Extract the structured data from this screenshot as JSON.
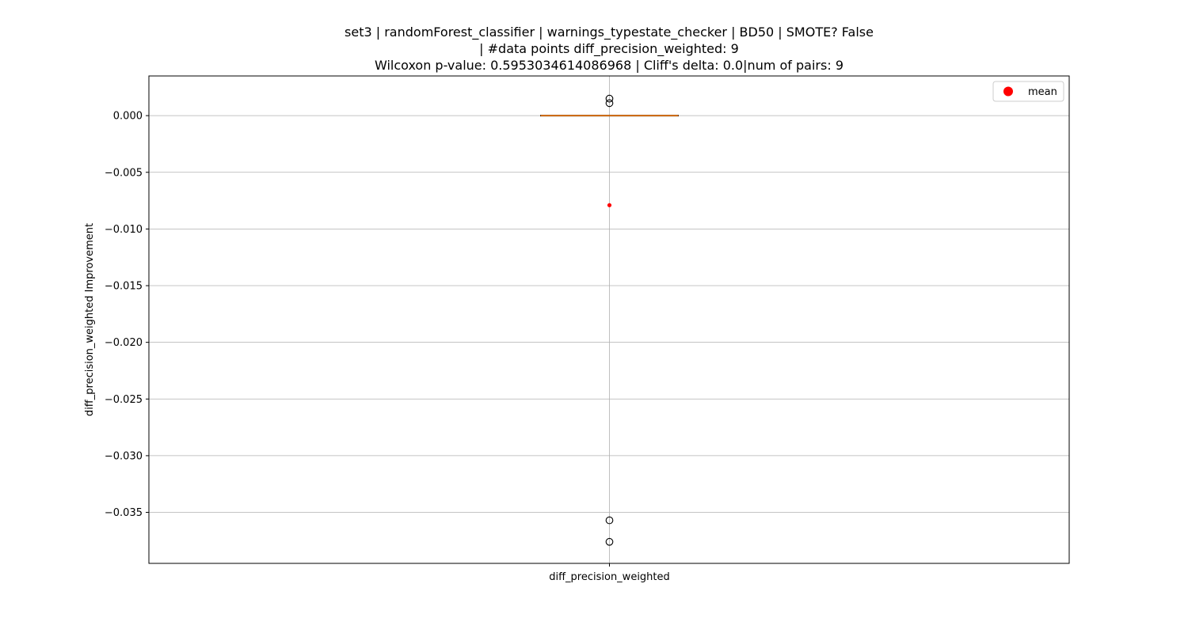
{
  "chart_data": {
    "type": "box",
    "title_lines": [
      "set3 | randomForest_classifier | warnings_typestate_checker | BD50 | SMOTE? False",
      "| #data points diff_precision_weighted: 9",
      "Wilcoxon p-value: 0.5953034614086968 | Cliff's delta: 0.0|num of pairs: 9"
    ],
    "xlabel": "",
    "ylabel": "diff_precision_weighted Improvement",
    "categories": [
      "diff_precision_weighted"
    ],
    "y_ticks": [
      0.0,
      -0.005,
      -0.01,
      -0.015,
      -0.02,
      -0.025,
      -0.03,
      -0.035
    ],
    "y_tick_labels": [
      "0.000",
      "−0.005",
      "−0.010",
      "−0.015",
      "−0.020",
      "−0.025",
      "−0.030",
      "−0.035"
    ],
    "ylim": [
      -0.0395,
      0.0035
    ],
    "grid": true,
    "box": {
      "q1": 0.0,
      "median": 0.0,
      "q3": 0.0,
      "whisker_low": 0.0,
      "whisker_high": 0.0
    },
    "outliers": [
      0.0015,
      0.0011,
      -0.0357,
      -0.0376
    ],
    "mean": -0.0079,
    "legend": {
      "placement": "top-right",
      "entries": [
        {
          "label": "mean",
          "color": "#ff0000",
          "marker": "circle"
        }
      ]
    },
    "colors": {
      "median": "#ff7f0e",
      "mean": "#ff0000",
      "grid": "#b0b0b0",
      "axes": "#000000"
    }
  }
}
